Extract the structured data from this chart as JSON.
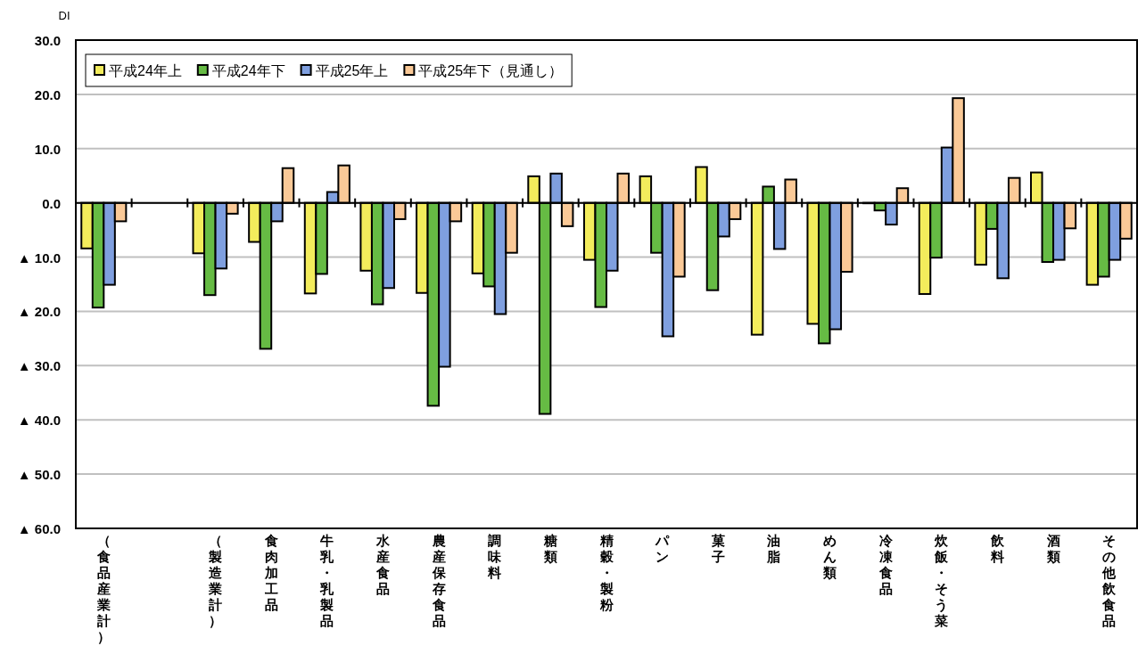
{
  "chart_data": {
    "type": "bar",
    "ylabel": "DI",
    "legend": "top left",
    "grid": "y",
    "categories": [
      "（食品産業計）",
      null,
      "（製造業計）",
      "食肉加工品",
      "牛乳・乳製品",
      "水産食品",
      "農産保存食品",
      "調味料",
      "糖類",
      "精穀・製粉",
      "パン",
      "菓子",
      "油脂",
      "めん類",
      "冷凍食品",
      "炊飯・そう菜",
      "飲料",
      "酒類",
      "その他飲食品"
    ],
    "ylim": [
      -60,
      30
    ],
    "yticks": [
      {
        "value": 30,
        "label": "30.0"
      },
      {
        "value": 20,
        "label": "20.0"
      },
      {
        "value": 10,
        "label": "10.0"
      },
      {
        "value": 0,
        "label": "0.0"
      },
      {
        "value": -10,
        "label": "▲ 10.0"
      },
      {
        "value": -20,
        "label": "▲ 20.0"
      },
      {
        "value": -30,
        "label": "▲ 30.0"
      },
      {
        "value": -40,
        "label": "▲ 40.0"
      },
      {
        "value": -50,
        "label": "▲ 50.0"
      },
      {
        "value": -60,
        "label": "▲ 60.0"
      }
    ],
    "series": [
      {
        "name": "平成24年上",
        "color": "#f3ec5c",
        "values": [
          -8.4,
          null,
          -9.3,
          -7.2,
          -16.7,
          -12.5,
          -16.6,
          -13.0,
          4.9,
          -10.5,
          4.9,
          6.6,
          -24.3,
          -22.3,
          0,
          -16.8,
          -11.4,
          5.6,
          -15.1
        ]
      },
      {
        "name": "平成24年下",
        "color": "#66bb44",
        "values": [
          -19.3,
          null,
          -17.0,
          -26.9,
          -13.1,
          -18.7,
          -37.4,
          -15.4,
          -38.9,
          -19.2,
          -9.2,
          -16.1,
          3.0,
          -25.9,
          -1.4,
          -10.1,
          -4.8,
          -10.9,
          -13.6
        ]
      },
      {
        "name": "平成25年上",
        "color": "#7f9fdf",
        "values": [
          -15.1,
          null,
          -12.1,
          -3.4,
          2.0,
          -15.7,
          -30.2,
          -20.5,
          5.4,
          -12.5,
          -24.6,
          -6.2,
          -8.5,
          -23.3,
          -4.0,
          10.2,
          -13.9,
          -10.5,
          -10.5
        ]
      },
      {
        "name": "平成25年下（見通し）",
        "color": "#fac997",
        "values": [
          -3.4,
          null,
          -2.0,
          6.4,
          6.9,
          -3.0,
          -3.4,
          -9.2,
          -4.3,
          5.4,
          -13.6,
          -3.0,
          4.3,
          -12.7,
          2.7,
          19.3,
          4.6,
          -4.7,
          -6.6
        ]
      }
    ]
  }
}
